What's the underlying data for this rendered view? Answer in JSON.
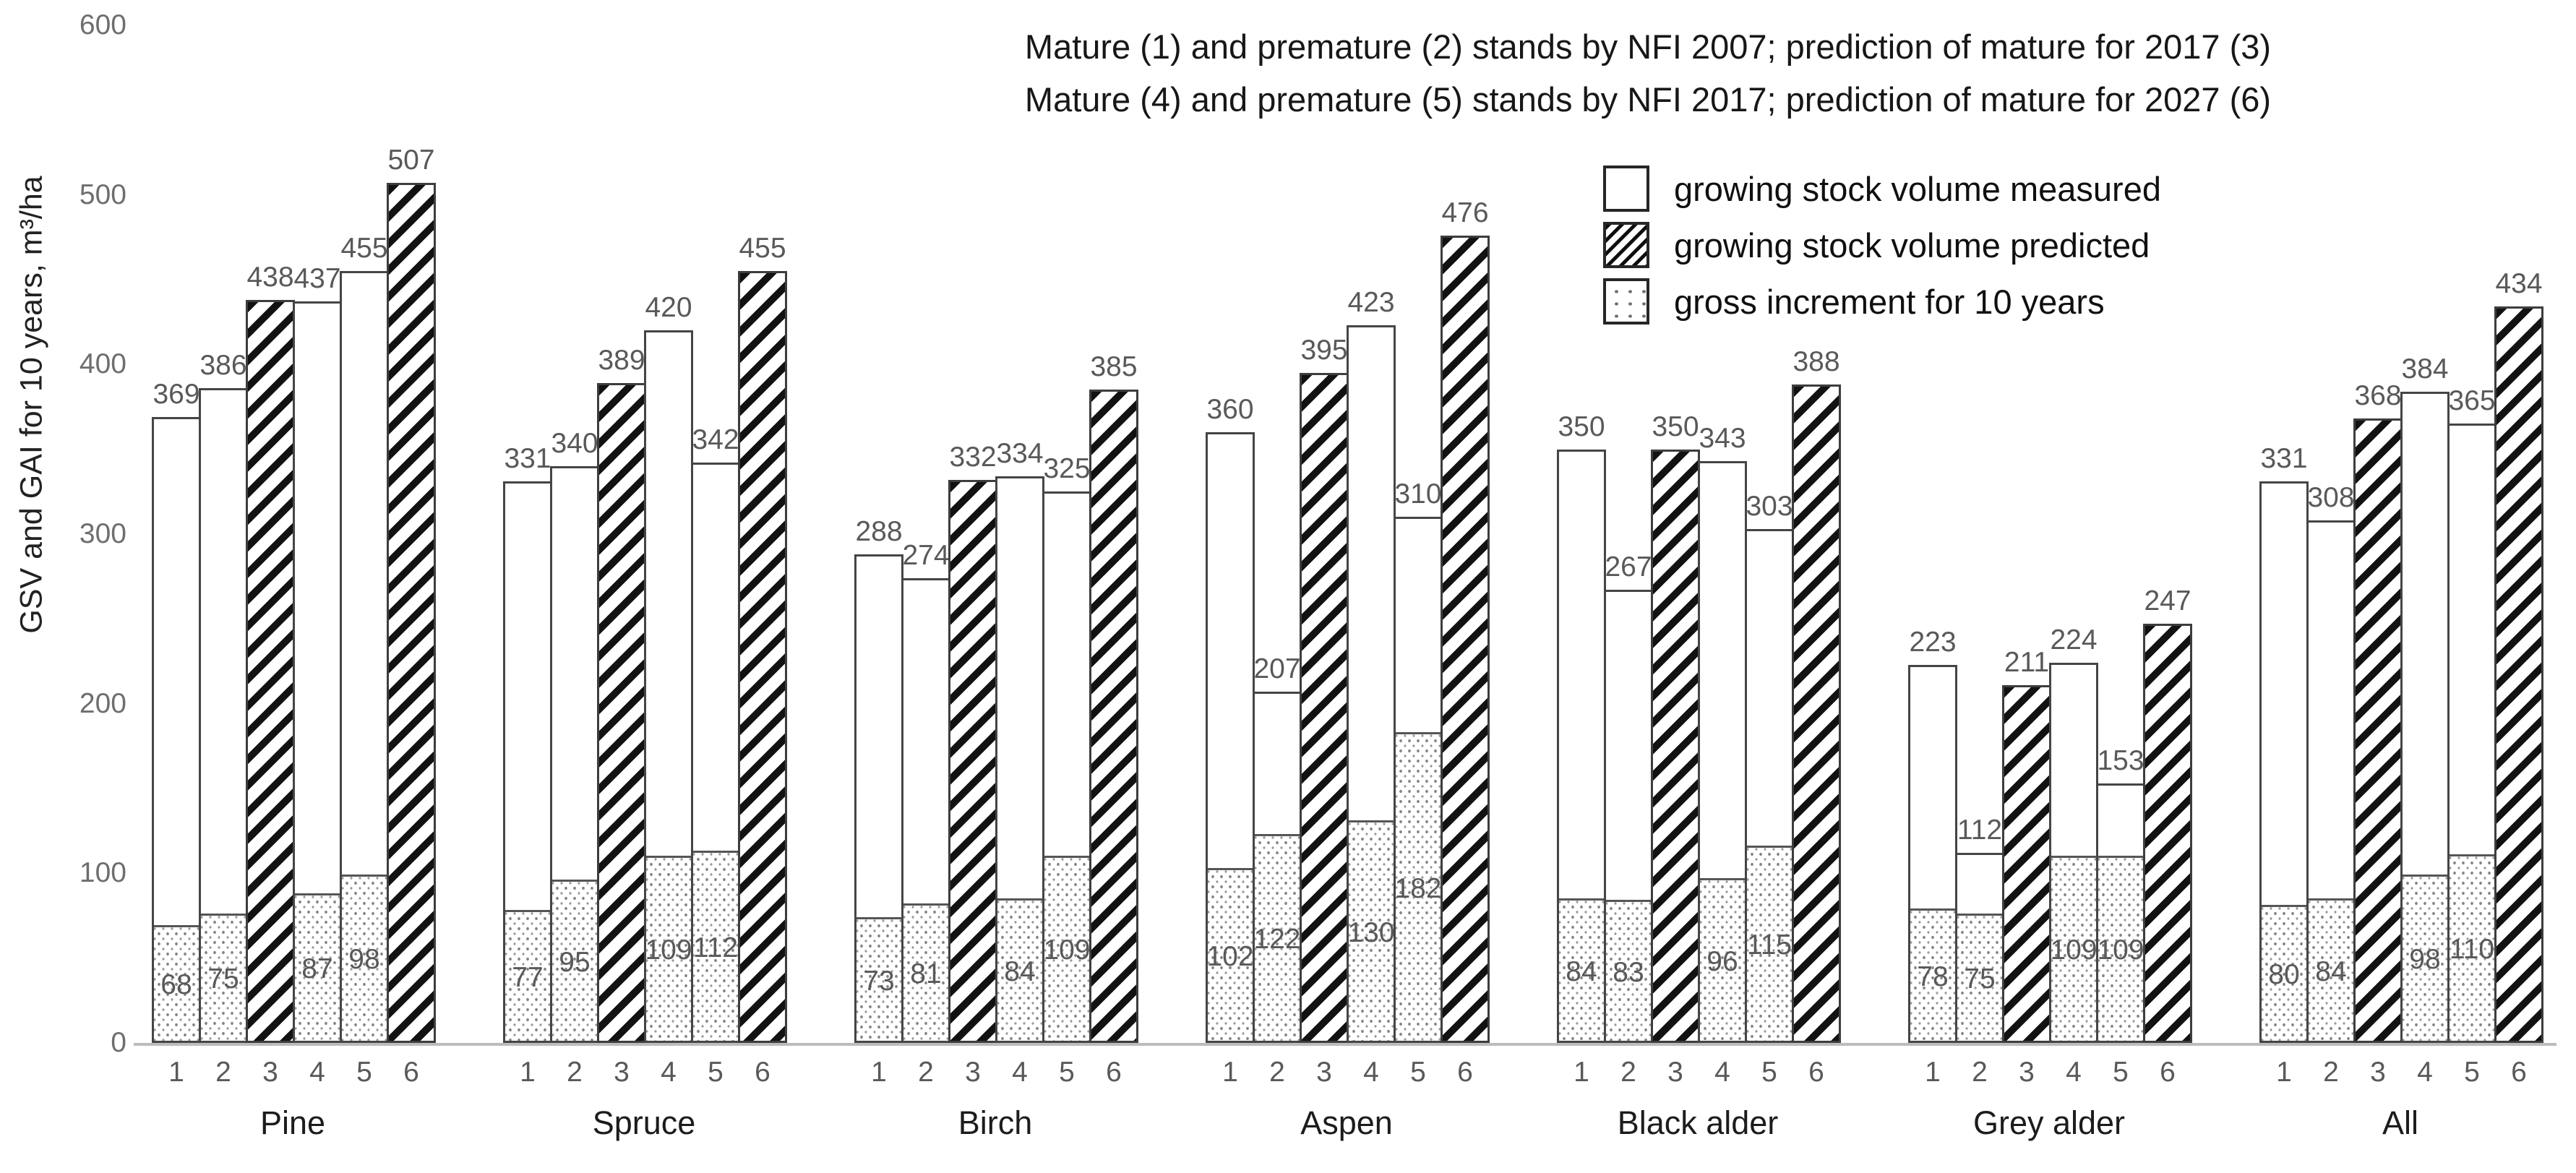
{
  "chart_data": {
    "type": "bar",
    "title_line1": "Mature (1) and  premature (2) stands by NFI 2007; prediction of mature for 2017 (3)",
    "title_line2": "Mature (4) and  premature (5) stands by NFI 2017; prediction of mature for 2027 (6)",
    "ylabel": "GSV and GAI for 10 years, m³/ha",
    "ylim": [
      0,
      600
    ],
    "yticks": [
      "0",
      "100",
      "200",
      "300",
      "400",
      "500",
      "600"
    ],
    "grid": false,
    "legend_position": "upper right inside plot",
    "legend": [
      {
        "label": "growing stock volume measured",
        "pattern": "plain"
      },
      {
        "label": "growing stock volume predicted",
        "pattern": "hatched"
      },
      {
        "label": "gross increment for 10 years",
        "pattern": "dotted"
      }
    ],
    "bar_numbering_note": "each group has bars 1-6; bars 3 and 6 are predicted (hatched), others measured (white) with dotted gross-increment overlay from zero",
    "colors": {
      "bar_fill": "#ffffff",
      "bar_border": "#454545",
      "hatch_stripe": "#121212",
      "value_label": "#595959",
      "tick_label": "#6e6e6e",
      "baseline": "#bcbcbc",
      "title_text": "#171717"
    },
    "groups": [
      {
        "name": "Pine",
        "bars": [
          {
            "label": "1",
            "pattern": "plain",
            "gsv": 369,
            "gai": 68
          },
          {
            "label": "2",
            "pattern": "plain",
            "gsv": 386,
            "gai": 75
          },
          {
            "label": "3",
            "pattern": "hatched",
            "gsv": 438
          },
          {
            "label": "4",
            "pattern": "plain",
            "gsv": 437,
            "gai": 87
          },
          {
            "label": "5",
            "pattern": "plain",
            "gsv": 455,
            "gai": 98
          },
          {
            "label": "6",
            "pattern": "hatched",
            "gsv": 507
          }
        ]
      },
      {
        "name": "Spruce",
        "bars": [
          {
            "label": "1",
            "pattern": "plain",
            "gsv": 331,
            "gai": 77
          },
          {
            "label": "2",
            "pattern": "plain",
            "gsv": 340,
            "gai": 95
          },
          {
            "label": "3",
            "pattern": "hatched",
            "gsv": 389
          },
          {
            "label": "4",
            "pattern": "plain",
            "gsv": 420,
            "gai": 109
          },
          {
            "label": "5",
            "pattern": "plain",
            "gsv": 342,
            "gai": 112
          },
          {
            "label": "6",
            "pattern": "hatched",
            "gsv": 455
          }
        ]
      },
      {
        "name": "Birch",
        "bars": [
          {
            "label": "1",
            "pattern": "plain",
            "gsv": 288,
            "gai": 73
          },
          {
            "label": "2",
            "pattern": "plain",
            "gsv": 274,
            "gai": 81
          },
          {
            "label": "3",
            "pattern": "hatched",
            "gsv": 332
          },
          {
            "label": "4",
            "pattern": "plain",
            "gsv": 334,
            "gai": 84
          },
          {
            "label": "5",
            "pattern": "plain",
            "gsv": 325,
            "gai": 109
          },
          {
            "label": "6",
            "pattern": "hatched",
            "gsv": 385
          }
        ]
      },
      {
        "name": "Aspen",
        "bars": [
          {
            "label": "1",
            "pattern": "plain",
            "gsv": 360,
            "gai": 102
          },
          {
            "label": "2",
            "pattern": "plain",
            "gsv": 207,
            "gai": 122
          },
          {
            "label": "3",
            "pattern": "hatched",
            "gsv": 395
          },
          {
            "label": "4",
            "pattern": "plain",
            "gsv": 423,
            "gai": 130
          },
          {
            "label": "5",
            "pattern": "plain",
            "gsv": 310,
            "gai": 182
          },
          {
            "label": "6",
            "pattern": "hatched",
            "gsv": 476
          }
        ]
      },
      {
        "name": "Black alder",
        "bars": [
          {
            "label": "1",
            "pattern": "plain",
            "gsv": 350,
            "gai": 84
          },
          {
            "label": "2",
            "pattern": "plain",
            "gsv": 267,
            "gai": 83
          },
          {
            "label": "3",
            "pattern": "hatched",
            "gsv": 350
          },
          {
            "label": "4",
            "pattern": "plain",
            "gsv": 343,
            "gai": 96
          },
          {
            "label": "5",
            "pattern": "plain",
            "gsv": 303,
            "gai": 115
          },
          {
            "label": "6",
            "pattern": "hatched",
            "gsv": 388
          }
        ]
      },
      {
        "name": "Grey alder",
        "bars": [
          {
            "label": "1",
            "pattern": "plain",
            "gsv": 223,
            "gai": 78
          },
          {
            "label": "2",
            "pattern": "plain",
            "gsv": 112,
            "gai": 75
          },
          {
            "label": "3",
            "pattern": "hatched",
            "gsv": 211
          },
          {
            "label": "4",
            "pattern": "plain",
            "gsv": 224,
            "gai": 109
          },
          {
            "label": "5",
            "pattern": "plain",
            "gsv": 153,
            "gai": 109
          },
          {
            "label": "6",
            "pattern": "hatched",
            "gsv": 247
          }
        ]
      },
      {
        "name": "All",
        "bars": [
          {
            "label": "1",
            "pattern": "plain",
            "gsv": 331,
            "gai": 80
          },
          {
            "label": "2",
            "pattern": "plain",
            "gsv": 308,
            "gai": 84
          },
          {
            "label": "3",
            "pattern": "hatched",
            "gsv": 368
          },
          {
            "label": "4",
            "pattern": "plain",
            "gsv": 384,
            "gai": 98
          },
          {
            "label": "5",
            "pattern": "plain",
            "gsv": 365,
            "gai": 110
          },
          {
            "label": "6",
            "pattern": "hatched",
            "gsv": 434
          }
        ]
      }
    ]
  }
}
